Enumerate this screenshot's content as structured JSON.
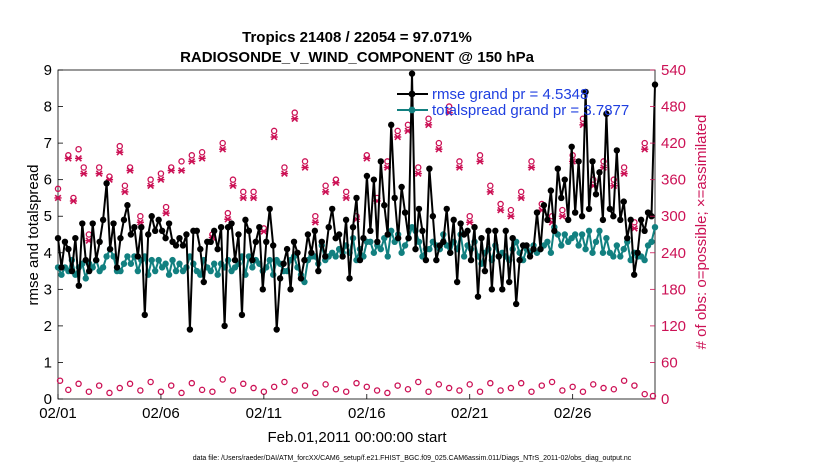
{
  "chart_data": {
    "type": "line",
    "title": "Tropics 21408 / 22054 = 97.071%",
    "subtitle": "RADIOSONDE_V_WIND_COMPONENT @ 150 hPa",
    "xlabel": "Feb.01,2011 00:00:00 start",
    "ylabel": "rmse and totalspread",
    "y2label": "# of obs: o=possible; ×=assimilated",
    "xlim": [
      0,
      29
    ],
    "ylim": [
      0,
      9
    ],
    "y2lim": [
      0,
      540
    ],
    "x_ticks": [
      0,
      5,
      10,
      15,
      20,
      25
    ],
    "x_tick_labels": [
      "02/01",
      "02/06",
      "02/11",
      "02/16",
      "02/21",
      "02/26"
    ],
    "y_ticks": [
      "0",
      "1",
      "2",
      "3",
      "4",
      "5",
      "6",
      "7",
      "8",
      "9"
    ],
    "y2_ticks": [
      "0",
      "60",
      "120",
      "180",
      "240",
      "300",
      "360",
      "420",
      "480",
      "540"
    ],
    "colors": {
      "rmse": "#000000",
      "spread": "#128080",
      "obs": "#cc1155",
      "legend_text": "#1f3fe0"
    },
    "series": [
      {
        "name": "rmse grand pr = 4.5348",
        "values": [
          4.4,
          3.6,
          4.3,
          4.1,
          3.5,
          4.4,
          3.1,
          4.8,
          3.8,
          3.5,
          4.8,
          3.8,
          4.3,
          4.9,
          5.9,
          4.1,
          4.8,
          3.6,
          4.4,
          4.9,
          5.3,
          4.5,
          4.7,
          3.9,
          4.7,
          2.3,
          4.5,
          5.0,
          4.6,
          4.9,
          4.6,
          4.4,
          4.8,
          4.3,
          4.2,
          4.4,
          4.2,
          4.5,
          1.9,
          4.6,
          4.6,
          4.1,
          3.2,
          4.3,
          4.3,
          4.6,
          4.1,
          4.7,
          2.0,
          4.7,
          4.8,
          3.8,
          4.5,
          2.3,
          4.9,
          4.6,
          3.8,
          4.3,
          4.7,
          3.0,
          4.3,
          5.2,
          4.2,
          1.9,
          3.3,
          3.7,
          4.1,
          3.0,
          4.3,
          4.0,
          3.3,
          3.8,
          4.5,
          4.0,
          4.6,
          3.5,
          4.3,
          3.9,
          4.7,
          5.2,
          4.4,
          4.5,
          3.9,
          4.9,
          3.3,
          4.7,
          5.5,
          3.8,
          4.4,
          6.1,
          4.6,
          6.0,
          4.3,
          6.5,
          5.3,
          4.5,
          7.5,
          5.5,
          4.4,
          5.8,
          5.1,
          4.4,
          8.9,
          4.1,
          5.2,
          4.6,
          3.8,
          6.3,
          5.0,
          3.8,
          4.2,
          4.3,
          5.2,
          4.0,
          4.9,
          3.2,
          4.8,
          4.5,
          4.6,
          3.8,
          4.7,
          2.8,
          4.4,
          3.5,
          4.6,
          3.0,
          4.6,
          3.9,
          3.0,
          4.6,
          3.2,
          4.4,
          2.6,
          3.8,
          4.2,
          4.2,
          3.9,
          4.1,
          5.1,
          4.1,
          5.3,
          4.9,
          5.7,
          4.6,
          6.3,
          5.5,
          6.0,
          4.9,
          6.9,
          5.1,
          6.5,
          5.0,
          8.4,
          5.2,
          6.5,
          5.6,
          6.2,
          4.9,
          7.8,
          5.2,
          5.0,
          6.8,
          4.9,
          5.4,
          4.4,
          4.9,
          3.4,
          4.0,
          4.9,
          4.6,
          5.1,
          5.0,
          8.6
        ]
      },
      {
        "name": "totalspread grand pr = 3.7877",
        "values": [
          3.6,
          3.4,
          3.6,
          3.5,
          3.8,
          3.4,
          3.6,
          3.7,
          3.3,
          3.7,
          3.6,
          3.8,
          3.5,
          3.6,
          3.9,
          4.1,
          3.9,
          3.5,
          3.5,
          3.7,
          3.9,
          3.7,
          3.9,
          3.5,
          3.8,
          3.9,
          3.4,
          3.8,
          3.5,
          3.8,
          3.6,
          3.7,
          3.4,
          3.8,
          3.5,
          3.7,
          3.5,
          3.6,
          3.9,
          3.7,
          3.5,
          3.4,
          3.8,
          3.6,
          3.5,
          3.7,
          3.4,
          3.7,
          3.6,
          3.8,
          3.5,
          3.6,
          3.7,
          3.9,
          3.4,
          3.9,
          3.6,
          3.8,
          3.7,
          3.5,
          3.6,
          3.8,
          3.4,
          3.8,
          3.7,
          3.5,
          3.5,
          3.8,
          3.9,
          3.6,
          3.4,
          3.2,
          3.8,
          3.9,
          3.9,
          3.7,
          4.2,
          3.8,
          3.9,
          4.0,
          3.9,
          4.1,
          4.0,
          4.2,
          4.0,
          4.4,
          3.8,
          4.1,
          3.9,
          4.3,
          4.3,
          4.0,
          4.2,
          4.1,
          4.4,
          3.9,
          4.6,
          4.3,
          4.5,
          4.0,
          4.2,
          4.4,
          4.7,
          4.6,
          4.3,
          3.9,
          4.1,
          4.1,
          4.3,
          4.2,
          4.1,
          4.5,
          4.2,
          4.0,
          4.3,
          4.1,
          4.5,
          3.9,
          4.2,
          4.1,
          4.3,
          3.9,
          3.7,
          4.0,
          4.1,
          3.8,
          4.2,
          3.9,
          4.0,
          3.9,
          3.8,
          4.1,
          4.3,
          4.0,
          3.8,
          4.1,
          4.0,
          4.2,
          4.0,
          4.1,
          4.2,
          4.3,
          4.0,
          4.7,
          4.5,
          4.2,
          4.5,
          4.3,
          4.4,
          4.5,
          4.2,
          4.5,
          4.1,
          4.6,
          4.0,
          4.3,
          4.6,
          4.0,
          4.4,
          4.0,
          3.9,
          4.2,
          3.9,
          4.1,
          4.3,
          3.8,
          4.0,
          3.9,
          3.9,
          3.8,
          4.2,
          4.3,
          4.7
        ]
      }
    ],
    "obs_count_series": [
      {
        "name": "possible",
        "marker": "o",
        "x": [
          0,
          0.5,
          0.75,
          1,
          1.25,
          1.5,
          2,
          2.5,
          3,
          3.25,
          3.5,
          4,
          4.5,
          5,
          5.25,
          5.5,
          6,
          6.5,
          7,
          7.5,
          8,
          8.25,
          8.5,
          9,
          9.5,
          10,
          10.5,
          11,
          11.5,
          12,
          12.5,
          13,
          13.5,
          14,
          14.5,
          15,
          15.5,
          16,
          16.5,
          17,
          17.5,
          18,
          18.5,
          19,
          19.5,
          20,
          20.5,
          21,
          21.5,
          22,
          22.5,
          23,
          23.5,
          24,
          24.5,
          25,
          25.5,
          26,
          26.5,
          27,
          27.5,
          28,
          28.5
        ],
        "values": [
          345,
          400,
          330,
          410,
          380,
          270,
          380,
          365,
          415,
          350,
          380,
          300,
          360,
          370,
          315,
          380,
          390,
          400,
          405,
          270,
          420,
          305,
          360,
          340,
          340,
          280,
          440,
          380,
          470,
          390,
          300,
          350,
          360,
          340,
          300,
          400,
          330,
          390,
          440,
          450,
          380,
          460,
          420,
          480,
          390,
          300,
          400,
          350,
          320,
          310,
          340,
          390,
          320,
          300,
          310,
          400,
          460,
          360,
          390,
          360,
          380,
          290,
          420
        ]
      },
      {
        "name": "assimilated",
        "marker": "x",
        "x": [
          0,
          0.5,
          0.75,
          1,
          1.25,
          1.5,
          2,
          2.5,
          3,
          3.25,
          3.5,
          4,
          4.5,
          5,
          5.25,
          5.5,
          6,
          6.5,
          7,
          7.5,
          8,
          8.25,
          8.5,
          9,
          9.5,
          10,
          10.5,
          11,
          11.5,
          12,
          12.5,
          13,
          13.5,
          14,
          14.5,
          15,
          15.5,
          16,
          16.5,
          17,
          17.5,
          18,
          18.5,
          19,
          19.5,
          20,
          20.5,
          21,
          21.5,
          22,
          22.5,
          23,
          23.5,
          24,
          24.5,
          25,
          25.5,
          26,
          26.5,
          27,
          27.5,
          28,
          28.5
        ],
        "values": [
          330,
          395,
          325,
          395,
          370,
          260,
          370,
          360,
          405,
          340,
          375,
          290,
          350,
          360,
          305,
          375,
          375,
          390,
          395,
          265,
          410,
          295,
          350,
          330,
          330,
          275,
          430,
          370,
          460,
          380,
          290,
          340,
          355,
          330,
          295,
          395,
          325,
          380,
          430,
          440,
          370,
          450,
          410,
          470,
          380,
          290,
          390,
          340,
          310,
          300,
          330,
          380,
          310,
          290,
          300,
          390,
          450,
          350,
          380,
          350,
          370,
          280,
          410
        ]
      },
      {
        "name": "rejected_low",
        "marker": "o",
        "x": [
          0.1,
          0.5,
          1,
          1.5,
          2,
          2.5,
          3,
          3.5,
          4,
          4.5,
          5,
          5.5,
          6,
          6.5,
          7,
          7.5,
          8,
          8.5,
          9,
          9.5,
          10,
          10.5,
          11,
          11.5,
          12,
          12.5,
          13,
          13.5,
          14,
          14.5,
          15,
          15.5,
          16,
          16.5,
          17,
          17.5,
          18,
          18.5,
          19,
          19.5,
          20,
          20.5,
          21,
          21.5,
          22,
          22.5,
          23,
          23.5,
          24,
          24.5,
          25,
          25.5,
          26,
          26.5,
          27,
          27.5,
          28,
          28.5,
          28.9
        ],
        "values": [
          30,
          15,
          25,
          12,
          22,
          10,
          18,
          25,
          14,
          28,
          12,
          22,
          10,
          26,
          15,
          12,
          32,
          14,
          25,
          18,
          12,
          20,
          28,
          14,
          22,
          10,
          24,
          16,
          12,
          26,
          20,
          14,
          10,
          22,
          16,
          28,
          12,
          24,
          18,
          14,
          24,
          12,
          26,
          14,
          18,
          26,
          12,
          22,
          28,
          14,
          20,
          12,
          24,
          18,
          16,
          30,
          22,
          8,
          5
        ]
      }
    ],
    "footer": "data file: /Users/raeder/DAI/ATM_forcXX/CAM6_setup/f.e21.FHIST_BGC.f09_025.CAM6assim.011/Diags_NTrS_2011-02/obs_diag_output.nc"
  }
}
